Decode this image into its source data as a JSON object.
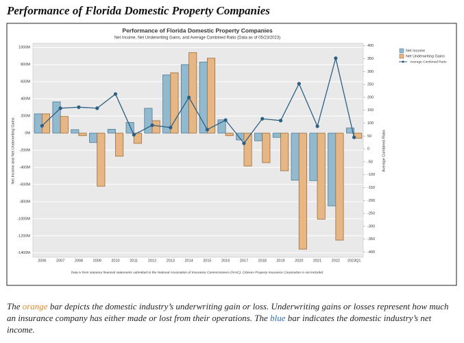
{
  "header": {
    "title": "Performance of Florida Domestic Property Companies"
  },
  "chart_data": {
    "type": "bar",
    "title": "Performance of Florida Domestic Property Companies",
    "subtitle": "Net Income, Net Underwriting Gains, and Average Combined Ratio (Data as of 05/23/2023)",
    "y_label": "Net Income and Net Underwriting Gains",
    "y2_label": "Average Combined Ratio",
    "footnote": "Data is from statutory financial statements submitted to the National Association of Insurance Commissioners (NAIC). Citizens Property Insurance Corporation is not included.",
    "categories": [
      "2006",
      "2007",
      "2008",
      "2009",
      "2010",
      "2011",
      "2012",
      "2013",
      "2014",
      "2015",
      "2016",
      "2017",
      "2018",
      "2019",
      "2020",
      "2021",
      "2022",
      "2023Q1"
    ],
    "series": [
      {
        "name": "Net Income",
        "color": "#93b9cf",
        "values": [
          225,
          365,
          40,
          -110,
          45,
          125,
          290,
          680,
          800,
          830,
          155,
          -80,
          -90,
          -50,
          -550,
          -555,
          -850,
          60
        ]
      },
      {
        "name": "Net Underwriting Gains",
        "color": "#e6b784",
        "values": [
          225,
          195,
          -30,
          -620,
          -270,
          -120,
          145,
          705,
          940,
          875,
          -30,
          -385,
          -345,
          -440,
          -1355,
          -1005,
          -1250,
          -60
        ]
      },
      {
        "name": "Average Combined Ratio",
        "color": "#2b5f82",
        "type": "line",
        "axis": "y2",
        "values": [
          90,
          158,
          162,
          158,
          213,
          55,
          92,
          83,
          200,
          75,
          112,
          22,
          117,
          110,
          253,
          88,
          352,
          45
        ]
      }
    ],
    "ylim": [
      -1450,
      1050
    ],
    "yticks": [
      {
        "value": 1000,
        "label": "1000M"
      },
      {
        "value": 800,
        "label": "800M"
      },
      {
        "value": 600,
        "label": "600M"
      },
      {
        "value": 400,
        "label": "400M"
      },
      {
        "value": 200,
        "label": "200M"
      },
      {
        "value": 0,
        "label": "0M"
      },
      {
        "value": -200,
        "label": "-200M"
      },
      {
        "value": -400,
        "label": "-400M"
      },
      {
        "value": -600,
        "label": "-600M"
      },
      {
        "value": -800,
        "label": "-800M"
      },
      {
        "value": -1000,
        "label": "-1000M"
      },
      {
        "value": -1200,
        "label": "-1200M"
      },
      {
        "value": -1400,
        "label": "-1400M"
      }
    ],
    "y2lim": [
      -420,
      410
    ],
    "y2ticks": [
      400,
      350,
      300,
      250,
      200,
      150,
      100,
      50,
      0,
      -50,
      -100,
      -150,
      -200,
      -250,
      -300,
      -350,
      -400
    ],
    "grid": true,
    "legend": "top-right"
  },
  "caption": {
    "parts": [
      "The ",
      "orange",
      " bar depicts the domestic industry’s underwriting gain or loss. Underwriting gains or losses represent how much an insurance company has either made or lost from their operations. The ",
      "blue",
      " bar indicates the domestic industry’s net income."
    ]
  }
}
